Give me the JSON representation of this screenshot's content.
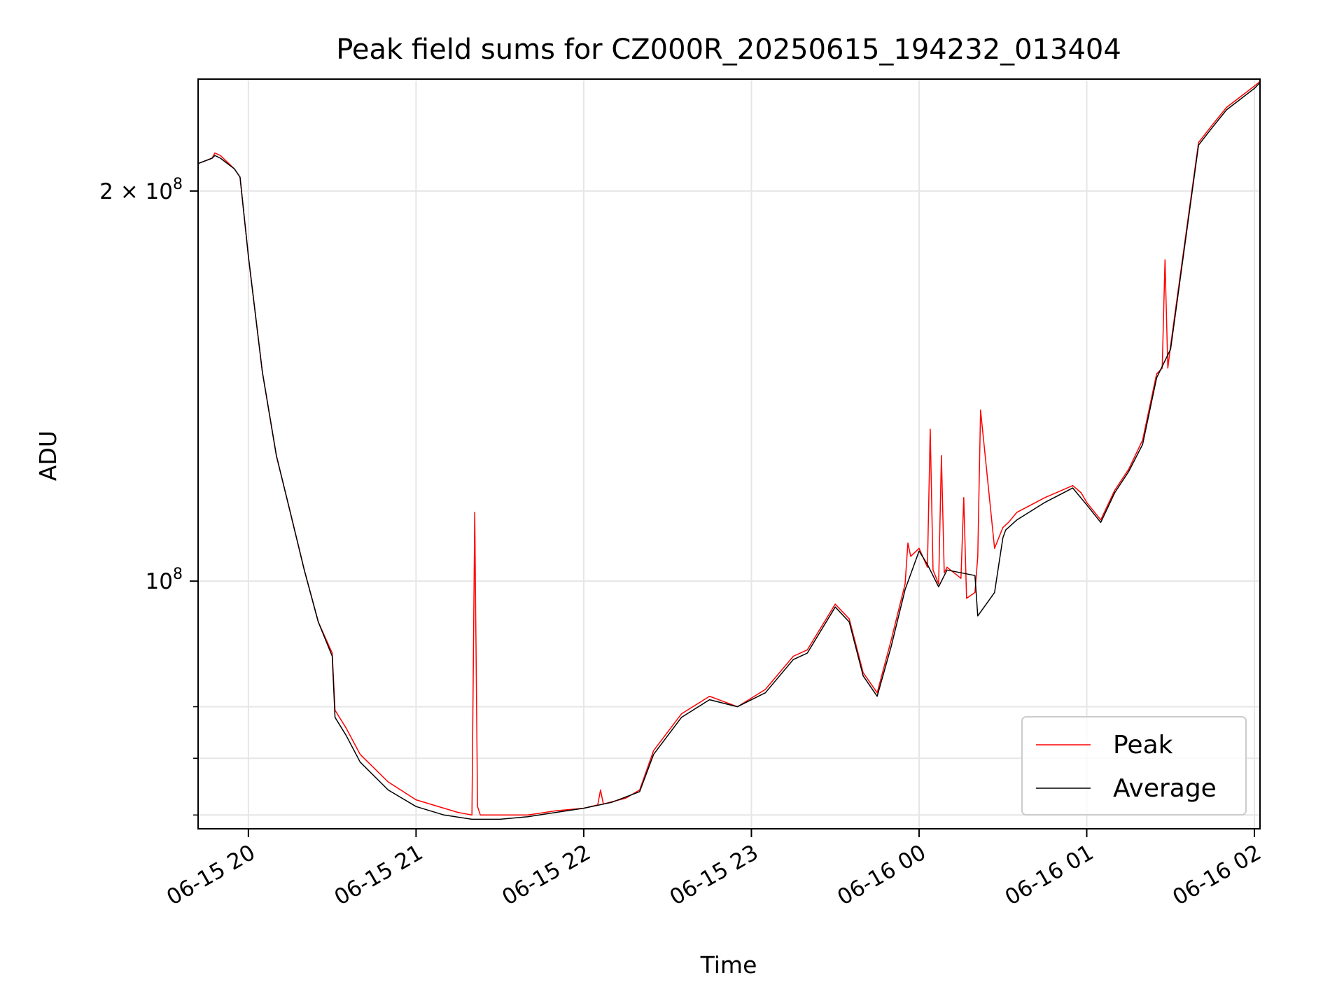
{
  "chart_data": {
    "type": "line",
    "title": "Peak field sums for CZ000R_20250615_194232_013404",
    "xlabel": "Time",
    "ylabel": "ADU",
    "x_scale": "time",
    "y_scale": "log",
    "xlim": [
      "2025-06-15T19:42",
      "2025-06-16T02:02"
    ],
    "ylim": [
      64400000,
      244000000
    ],
    "x_ticks": [
      {
        "value": "2025-06-15T20:00",
        "label": "06-15 20"
      },
      {
        "value": "2025-06-15T21:00",
        "label": "06-15 21"
      },
      {
        "value": "2025-06-15T22:00",
        "label": "06-15 22"
      },
      {
        "value": "2025-06-15T23:00",
        "label": "06-15 23"
      },
      {
        "value": "2025-06-16T00:00",
        "label": "06-16 00"
      },
      {
        "value": "2025-06-16T01:00",
        "label": "06-16 01"
      },
      {
        "value": "2025-06-16T02:00",
        "label": "06-16 02"
      }
    ],
    "y_major_ticks": [
      {
        "value": 100000000,
        "label": "10",
        "exp": "8"
      },
      {
        "value": 200000000,
        "label": "2 × 10",
        "exp": "8"
      }
    ],
    "y_minor_ticks": [
      66000000,
      73000000,
      80000000
    ],
    "grid": true,
    "legend": {
      "position": "lower right",
      "entries": [
        "Peak",
        "Average"
      ]
    },
    "series": [
      {
        "name": "Peak",
        "color": "#ff0000",
        "x": [
          "2025-06-15T19:42",
          "2025-06-15T19:47",
          "2025-06-15T19:48",
          "2025-06-15T19:50",
          "2025-06-15T19:55",
          "2025-06-15T19:57",
          "2025-06-15T20:00",
          "2025-06-15T20:05",
          "2025-06-15T20:10",
          "2025-06-15T20:15",
          "2025-06-15T20:20",
          "2025-06-15T20:25",
          "2025-06-15T20:30",
          "2025-06-15T20:31",
          "2025-06-15T20:35",
          "2025-06-15T20:40",
          "2025-06-15T20:50",
          "2025-06-15T21:00",
          "2025-06-15T21:10",
          "2025-06-15T21:15",
          "2025-06-15T21:20",
          "2025-06-15T21:21",
          "2025-06-15T21:22",
          "2025-06-15T21:23",
          "2025-06-15T21:30",
          "2025-06-15T21:40",
          "2025-06-15T21:50",
          "2025-06-15T22:00",
          "2025-06-15T22:05",
          "2025-06-15T22:06",
          "2025-06-15T22:07",
          "2025-06-15T22:15",
          "2025-06-15T22:20",
          "2025-06-15T22:25",
          "2025-06-15T22:35",
          "2025-06-15T22:45",
          "2025-06-15T22:55",
          "2025-06-15T23:05",
          "2025-06-15T23:15",
          "2025-06-15T23:20",
          "2025-06-15T23:30",
          "2025-06-15T23:35",
          "2025-06-15T23:40",
          "2025-06-15T23:45",
          "2025-06-15T23:50",
          "2025-06-15T23:55",
          "2025-06-15T23:56",
          "2025-06-15T23:57",
          "2025-06-16T00:00",
          "2025-06-16T00:03",
          "2025-06-16T00:04",
          "2025-06-16T00:05",
          "2025-06-16T00:07",
          "2025-06-16T00:08",
          "2025-06-16T00:09",
          "2025-06-16T00:10",
          "2025-06-16T00:15",
          "2025-06-16T00:16",
          "2025-06-16T00:17",
          "2025-06-16T00:20",
          "2025-06-16T00:21",
          "2025-06-16T00:22",
          "2025-06-16T00:27",
          "2025-06-16T00:30",
          "2025-06-16T00:31",
          "2025-06-16T00:32",
          "2025-06-16T00:35",
          "2025-06-16T00:45",
          "2025-06-16T00:55",
          "2025-06-16T00:58",
          "2025-06-16T01:00",
          "2025-06-16T01:05",
          "2025-06-16T01:10",
          "2025-06-16T01:15",
          "2025-06-16T01:20",
          "2025-06-16T01:25",
          "2025-06-16T01:27",
          "2025-06-16T01:28",
          "2025-06-16T01:29",
          "2025-06-16T01:30",
          "2025-06-16T01:35",
          "2025-06-16T01:40",
          "2025-06-16T01:45",
          "2025-06-16T01:50",
          "2025-06-16T02:00",
          "2025-06-16T02:02"
        ],
        "values": [
          210000000,
          212000000,
          214000000,
          213000000,
          208000000,
          205000000,
          178000000,
          145000000,
          125000000,
          113000000,
          102000000,
          93000000,
          88000000,
          79500000,
          77000000,
          73500000,
          70000000,
          67800000,
          66800000,
          66300000,
          66000000,
          113000000,
          67000000,
          66000000,
          66000000,
          66000000,
          66500000,
          66800000,
          67200000,
          69000000,
          67300000,
          68000000,
          69000000,
          74000000,
          79000000,
          81500000,
          80000000,
          82500000,
          87500000,
          88500000,
          96000000,
          93500000,
          85000000,
          82000000,
          90000000,
          99500000,
          107000000,
          104500000,
          106000000,
          102500000,
          131000000,
          102000000,
          99500000,
          125000000,
          101500000,
          102500000,
          100500000,
          116000000,
          97000000,
          98000000,
          104500000,
          135500000,
          106000000,
          110000000,
          110500000,
          111000000,
          113000000,
          116000000,
          118500000,
          117000000,
          115000000,
          111500000,
          117500000,
          122000000,
          128500000,
          144500000,
          146000000,
          177000000,
          146000000,
          152000000,
          182000000,
          218000000,
          225000000,
          232000000,
          241000000,
          243000000
        ]
      },
      {
        "name": "Average",
        "color": "#000000",
        "x": [
          "2025-06-15T19:42",
          "2025-06-15T19:47",
          "2025-06-15T19:48",
          "2025-06-15T19:50",
          "2025-06-15T19:55",
          "2025-06-15T19:57",
          "2025-06-15T20:00",
          "2025-06-15T20:05",
          "2025-06-15T20:10",
          "2025-06-15T20:15",
          "2025-06-15T20:20",
          "2025-06-15T20:25",
          "2025-06-15T20:30",
          "2025-06-15T20:31",
          "2025-06-15T20:35",
          "2025-06-15T20:40",
          "2025-06-15T20:50",
          "2025-06-15T21:00",
          "2025-06-15T21:10",
          "2025-06-15T21:20",
          "2025-06-15T21:30",
          "2025-06-15T21:40",
          "2025-06-15T21:50",
          "2025-06-15T22:00",
          "2025-06-15T22:10",
          "2025-06-15T22:20",
          "2025-06-15T22:25",
          "2025-06-15T22:35",
          "2025-06-15T22:45",
          "2025-06-15T22:55",
          "2025-06-15T23:05",
          "2025-06-15T23:15",
          "2025-06-15T23:20",
          "2025-06-15T23:30",
          "2025-06-15T23:35",
          "2025-06-15T23:40",
          "2025-06-15T23:45",
          "2025-06-15T23:50",
          "2025-06-15T23:55",
          "2025-06-16T00:00",
          "2025-06-16T00:03",
          "2025-06-16T00:07",
          "2025-06-16T00:10",
          "2025-06-16T00:20",
          "2025-06-16T00:21",
          "2025-06-16T00:27",
          "2025-06-16T00:30",
          "2025-06-16T00:31",
          "2025-06-16T00:35",
          "2025-06-16T00:45",
          "2025-06-16T00:55",
          "2025-06-16T01:00",
          "2025-06-16T01:05",
          "2025-06-16T01:10",
          "2025-06-16T01:15",
          "2025-06-16T01:20",
          "2025-06-16T01:25",
          "2025-06-16T01:30",
          "2025-06-16T01:35",
          "2025-06-16T01:40",
          "2025-06-16T01:45",
          "2025-06-16T01:50",
          "2025-06-16T02:00",
          "2025-06-16T02:02"
        ],
        "values": [
          210000000,
          212000000,
          213000000,
          212000000,
          208000000,
          205000000,
          178000000,
          145000000,
          125000000,
          113000000,
          102000000,
          93000000,
          87500000,
          78500000,
          76000000,
          72500000,
          69000000,
          67000000,
          66000000,
          65500000,
          65500000,
          65800000,
          66300000,
          66800000,
          67500000,
          68800000,
          73500000,
          78500000,
          81000000,
          80000000,
          82000000,
          87000000,
          88000000,
          95500000,
          93000000,
          84500000,
          81500000,
          89000000,
          98500000,
          105500000,
          103000000,
          99000000,
          102000000,
          101000000,
          94000000,
          98000000,
          108000000,
          109500000,
          111500000,
          115000000,
          118000000,
          114500000,
          111000000,
          117000000,
          121500000,
          127500000,
          143500000,
          151000000,
          181000000,
          217000000,
          224000000,
          231000000,
          240000000,
          242500000
        ]
      }
    ]
  }
}
